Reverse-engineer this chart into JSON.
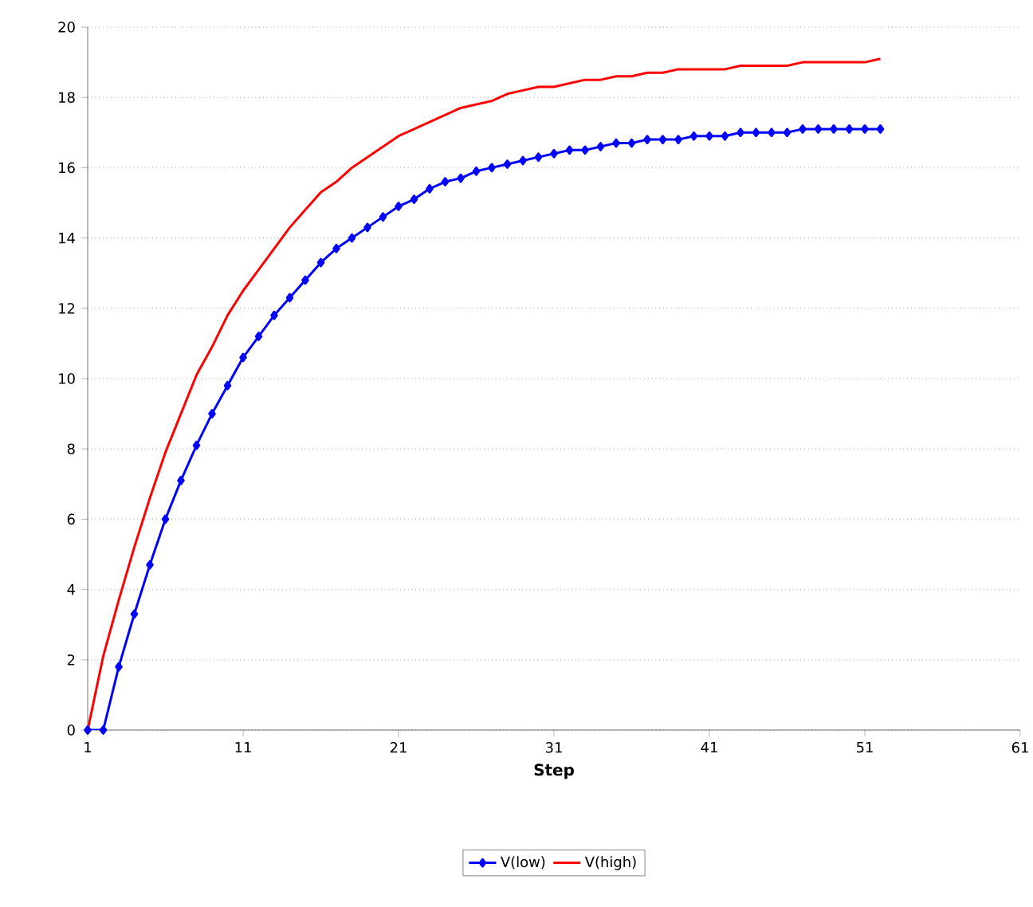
{
  "chart_data": {
    "type": "line",
    "xlabel": "Step",
    "x": [
      1,
      2,
      3,
      4,
      5,
      6,
      7,
      8,
      9,
      10,
      11,
      12,
      13,
      14,
      15,
      16,
      17,
      18,
      19,
      20,
      21,
      22,
      23,
      24,
      25,
      26,
      27,
      28,
      29,
      30,
      31,
      32,
      33,
      34,
      35,
      36,
      37,
      38,
      39,
      40,
      41,
      42,
      43,
      44,
      45,
      46,
      47,
      48,
      49,
      50,
      51,
      52
    ],
    "series": [
      {
        "name": "V(low)",
        "color": "#0000ff",
        "marker": "diamond",
        "values": [
          0,
          0,
          1.8,
          3.3,
          4.7,
          6.0,
          7.1,
          8.1,
          9.0,
          9.8,
          10.6,
          11.2,
          11.8,
          12.3,
          12.8,
          13.3,
          13.7,
          14.0,
          14.3,
          14.6,
          14.9,
          15.1,
          15.4,
          15.6,
          15.7,
          15.9,
          16.0,
          16.1,
          16.2,
          16.3,
          16.4,
          16.5,
          16.5,
          16.6,
          16.7,
          16.7,
          16.8,
          16.8,
          16.8,
          16.9,
          16.9,
          16.9,
          17.0,
          17.0,
          17.0,
          17.0,
          17.1,
          17.1,
          17.1,
          17.1,
          17.1,
          17.1
        ]
      },
      {
        "name": "V(high)",
        "color": "#ff0000",
        "marker": "none",
        "values": [
          0,
          2.1,
          3.7,
          5.2,
          6.6,
          7.9,
          9.0,
          10.1,
          10.9,
          11.8,
          12.5,
          13.1,
          13.7,
          14.3,
          14.8,
          15.3,
          15.6,
          16.0,
          16.3,
          16.6,
          16.9,
          17.1,
          17.3,
          17.5,
          17.7,
          17.8,
          17.9,
          18.1,
          18.2,
          18.3,
          18.3,
          18.4,
          18.5,
          18.5,
          18.6,
          18.6,
          18.7,
          18.7,
          18.8,
          18.8,
          18.8,
          18.8,
          18.9,
          18.9,
          18.9,
          18.9,
          19.0,
          19.0,
          19.0,
          19.0,
          19.0,
          19.1
        ]
      }
    ],
    "xlim": [
      1,
      61
    ],
    "xticks": [
      1,
      11,
      21,
      31,
      41,
      51,
      61
    ],
    "ylim": [
      0,
      20
    ],
    "yticks": [
      0,
      2,
      4,
      6,
      8,
      10,
      12,
      14,
      16,
      18,
      20
    ],
    "grid": "y",
    "legend": "bottom",
    "line_style": "solid"
  }
}
